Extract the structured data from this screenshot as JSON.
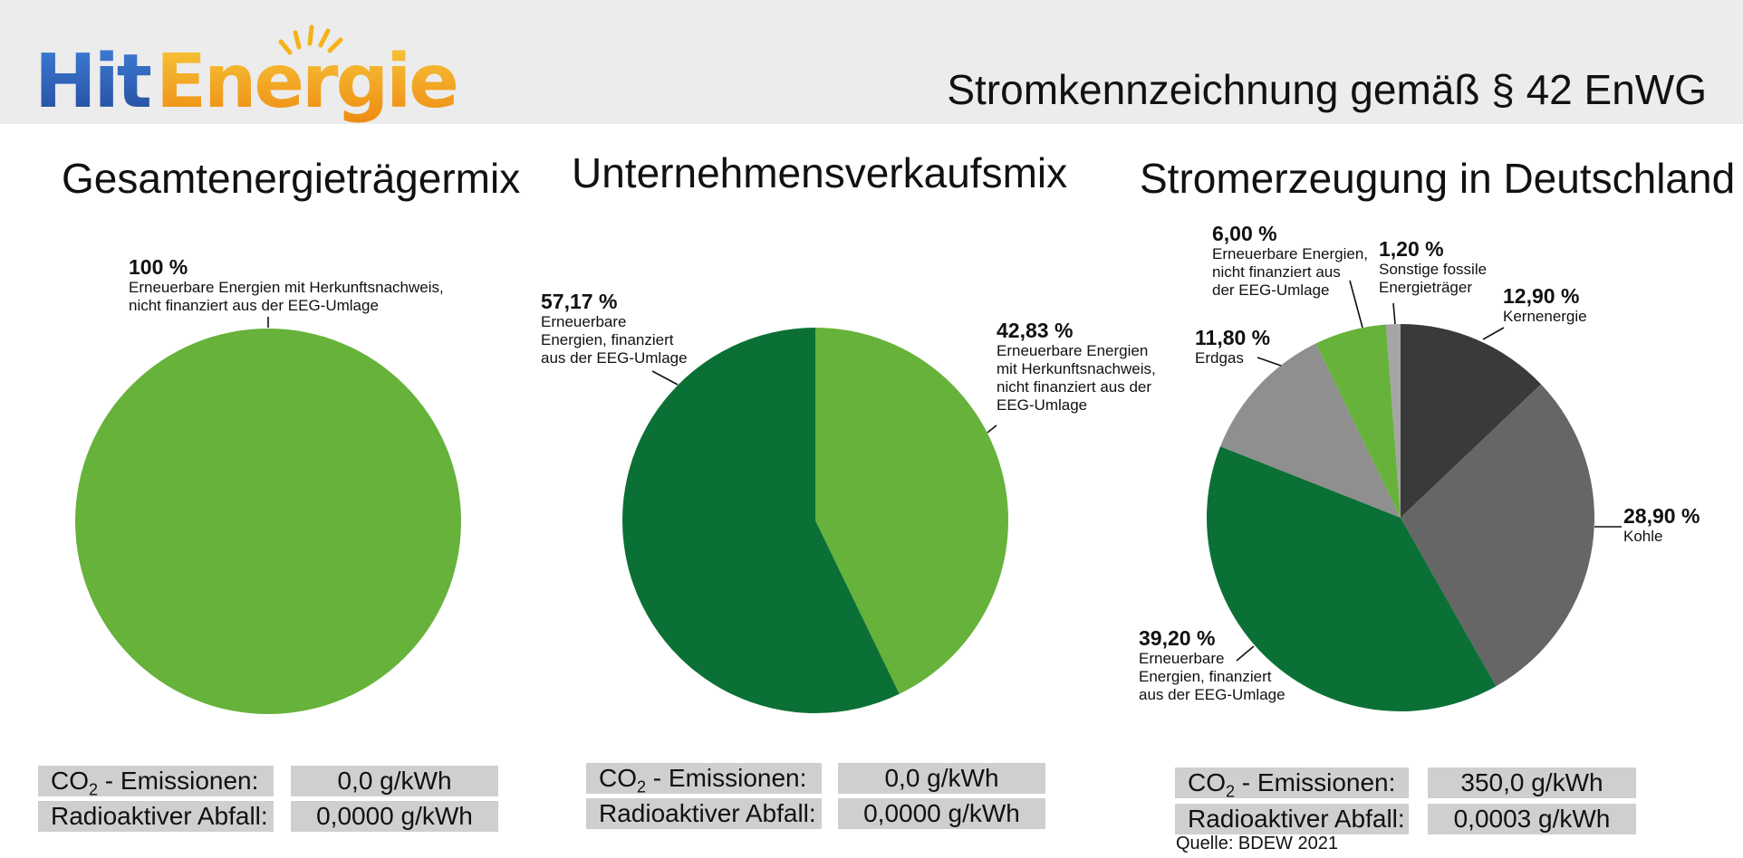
{
  "header": {
    "logo_part1": "Hit",
    "logo_part2": "Energie",
    "title": "Stromkennzeichnung gemäß § 42 EnWG"
  },
  "colors": {
    "light_green": "#66b23b",
    "dark_green": "#0b7035",
    "dark_gray": "#3a3a3a",
    "mid_gray": "#666666",
    "light_gray": "#8f8f8f",
    "pale_gray": "#a5a5a5",
    "logo_blue": "#2c5fb6",
    "logo_orange": "#f39c12"
  },
  "chart_data": [
    {
      "type": "pie",
      "title": "Gesamtenergieträgermix",
      "slices": [
        {
          "label": "Erneuerbare Energien mit Herkunftsnachweis,\nnicht finanziert aus der EEG-Umlage",
          "pct_text": "100 %",
          "value": 100,
          "color": "#66b23b"
        }
      ]
    },
    {
      "type": "pie",
      "title": "Unternehmensverkaufsmix",
      "slices": [
        {
          "label": "Erneuerbare Energien\nmit Herkunftsnachweis,\nnicht finanziert aus der\nEEG-Umlage",
          "pct_text": "42,83 %",
          "value": 42.83,
          "color": "#66b23b"
        },
        {
          "label": "Erneuerbare\nEnergien, finanziert\naus der EEG-Umlage",
          "pct_text": "57,17 %",
          "value": 57.17,
          "color": "#0b7035"
        }
      ]
    },
    {
      "type": "pie",
      "title": "Stromerzeugung in Deutschland",
      "slices": [
        {
          "label": "Kernenergie",
          "pct_text": "12,90 %",
          "value": 12.9,
          "color": "#3a3a3a"
        },
        {
          "label": "Kohle",
          "pct_text": "28,90 %",
          "value": 28.9,
          "color": "#666666"
        },
        {
          "label": "Erneuerbare\nEnergien, finanziert\naus der EEG-Umlage",
          "pct_text": "39,20 %",
          "value": 39.2,
          "color": "#0b7035"
        },
        {
          "label": "Erdgas",
          "pct_text": "11,80 %",
          "value": 11.8,
          "color": "#8f8f8f"
        },
        {
          "label": "Erneuerbare Energien,\nnicht finanziert aus\nder EEG-Umlage",
          "pct_text": "6,00 %",
          "value": 6.0,
          "color": "#66b23b"
        },
        {
          "label": "Sonstige fossile\nEnergieträger",
          "pct_text": "1,20 %",
          "value": 1.2,
          "color": "#a5a5a5"
        }
      ]
    }
  ],
  "tables": [
    {
      "co2_label_pre": "CO",
      "co2_label_sub": "2",
      "co2_label_post": " - Emissionen:",
      "co2_value": "0,0 g/kWh",
      "waste_label": "Radioaktiver Abfall:",
      "waste_value": "0,0000 g/kWh"
    },
    {
      "co2_label_pre": "CO",
      "co2_label_sub": "2",
      "co2_label_post": " - Emissionen:",
      "co2_value": "0,0 g/kWh",
      "waste_label": "Radioaktiver Abfall:",
      "waste_value": "0,0000 g/kWh"
    },
    {
      "co2_label_pre": "CO",
      "co2_label_sub": "2",
      "co2_label_post": " - Emissionen:",
      "co2_value": "350,0 g/kWh",
      "waste_label": "Radioaktiver Abfall:",
      "waste_value": "0,0003 g/kWh"
    }
  ],
  "source": "Quelle: BDEW 2021"
}
